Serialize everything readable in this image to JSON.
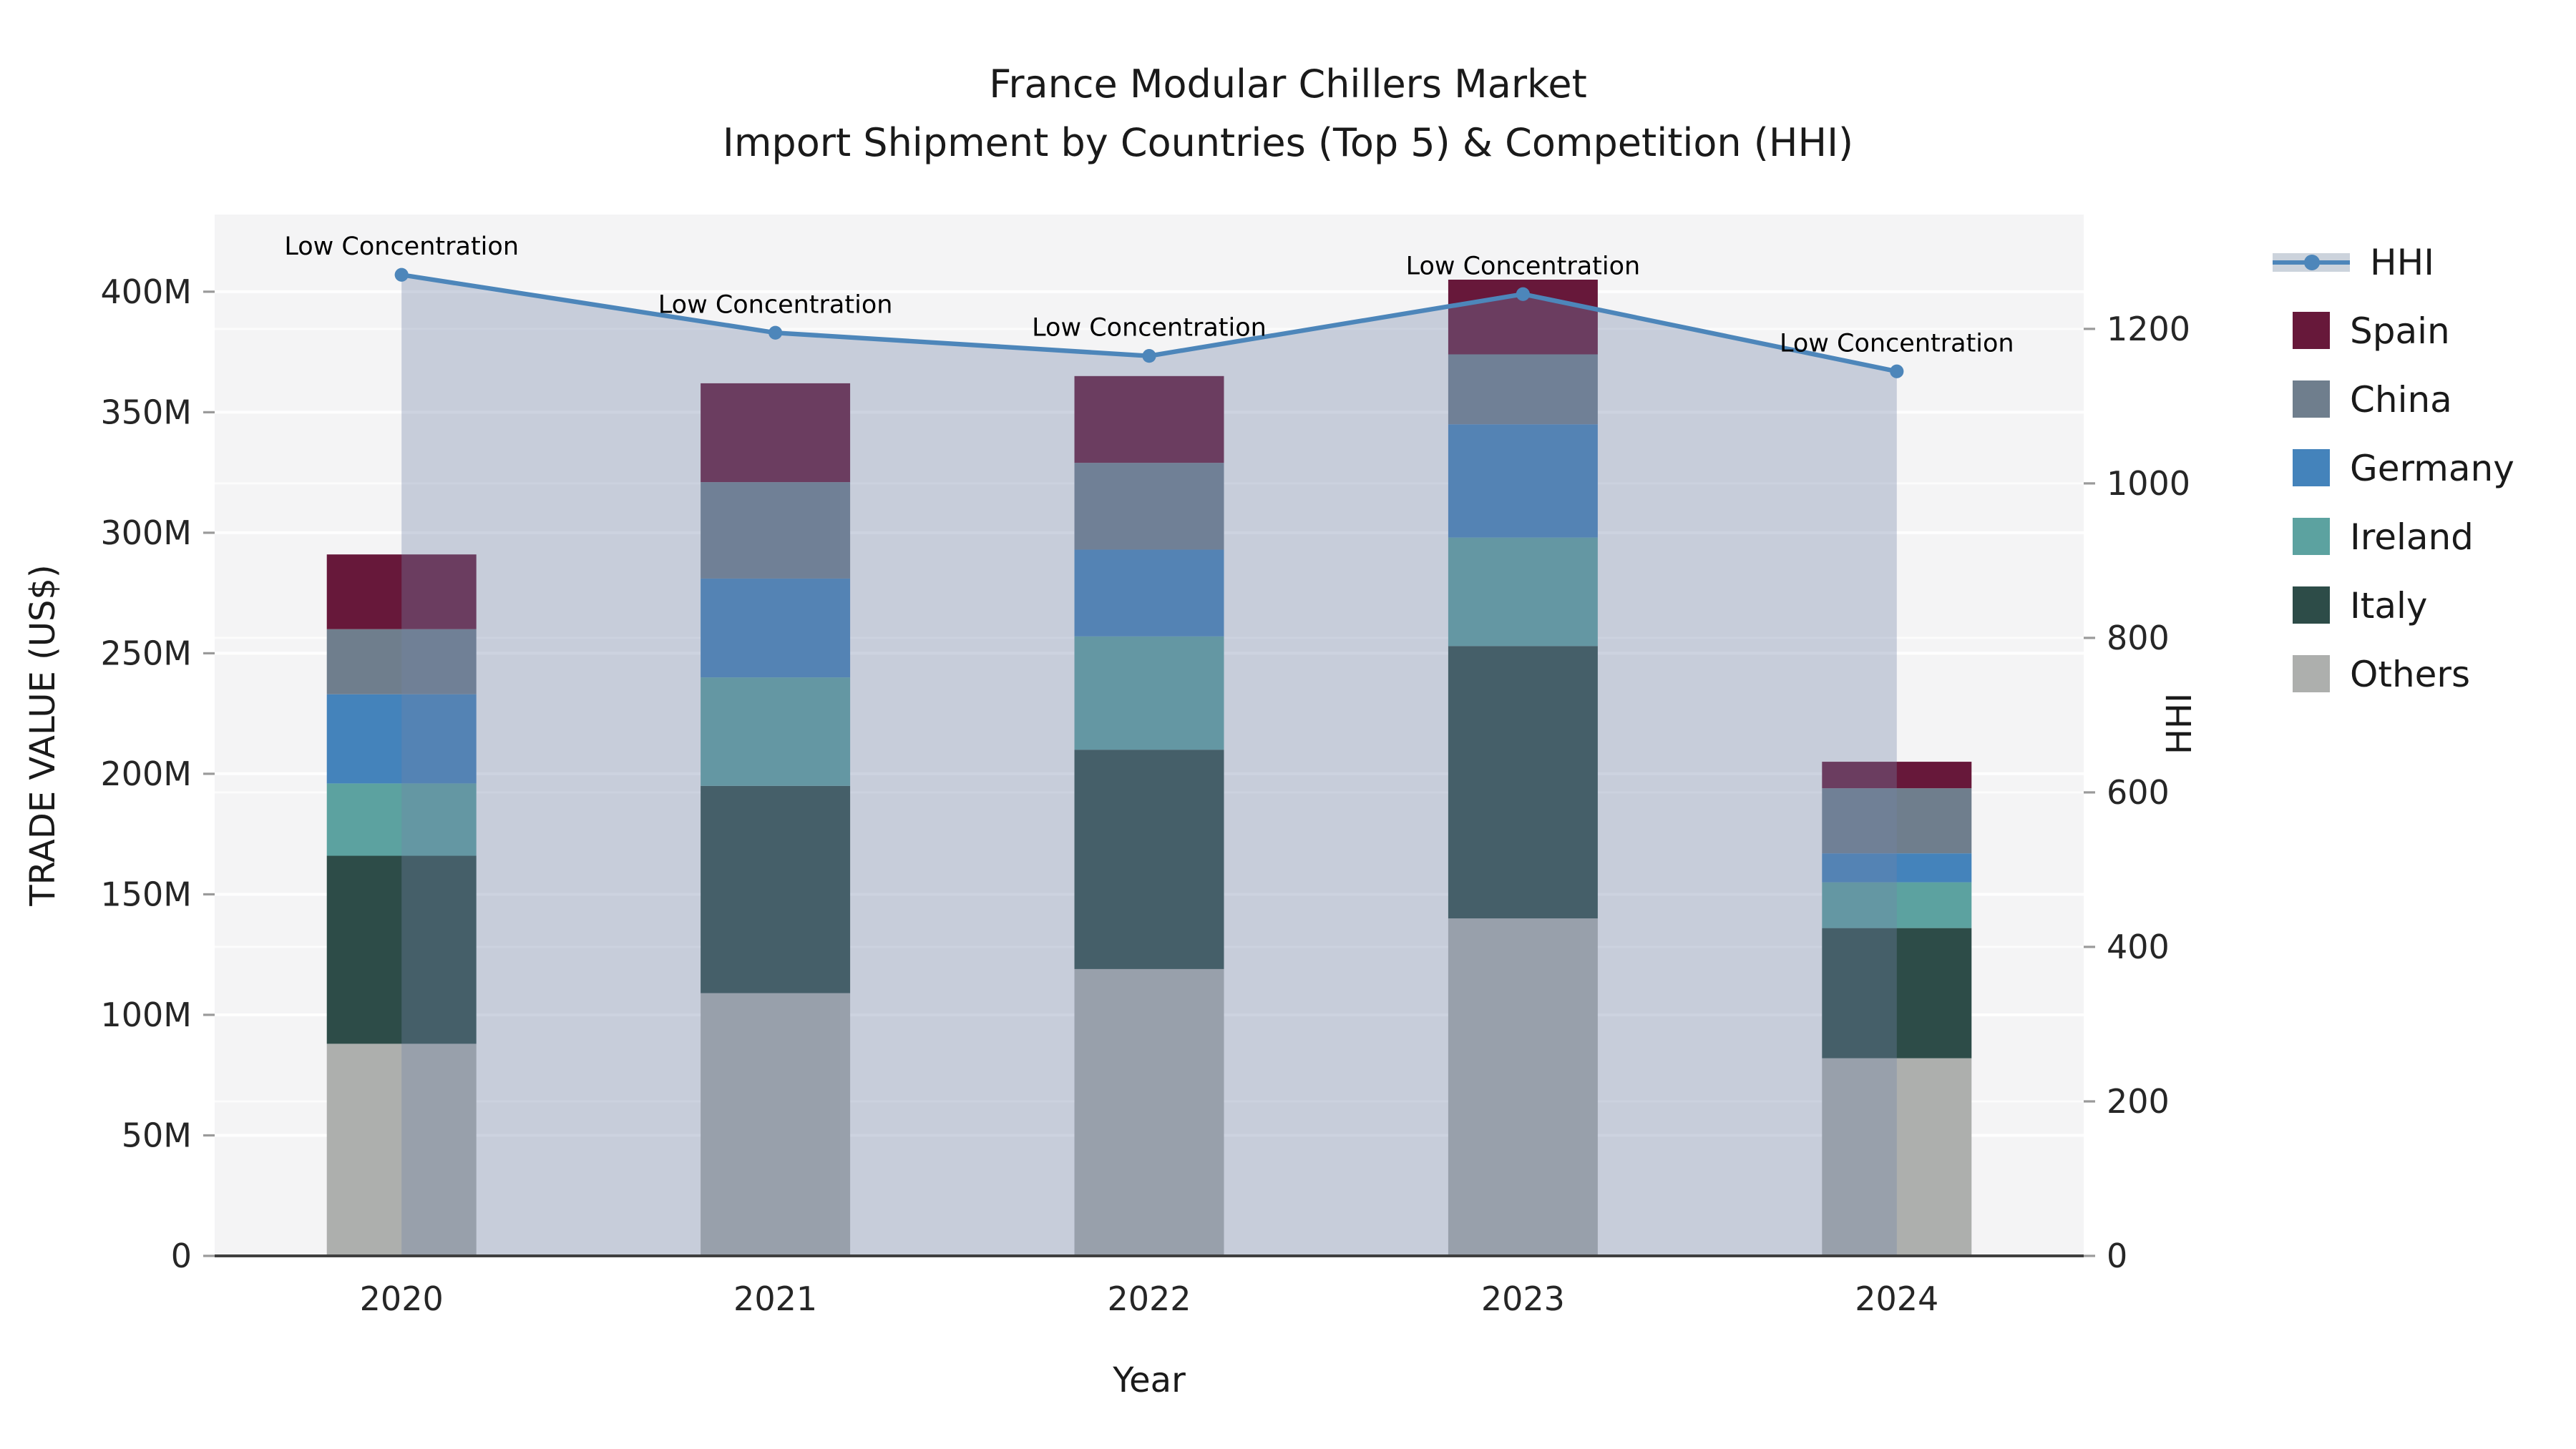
{
  "chart_data": {
    "type": "bar+line",
    "title": "France Modular Chillers Market",
    "subtitle": "Import Shipment by Countries (Top 5) & Competition (HHI)",
    "xlabel": "Year",
    "ylabel_left": "TRADE VALUE (US$)",
    "ylabel_right": "HHI",
    "categories": [
      "2020",
      "2021",
      "2022",
      "2023",
      "2024"
    ],
    "stack_order_bottom_to_top": [
      "Others",
      "Italy",
      "Ireland",
      "Germany",
      "China",
      "Spain"
    ],
    "series": [
      {
        "name": "Spain",
        "color": "#67183A",
        "values": [
          31,
          41,
          36,
          31,
          11
        ]
      },
      {
        "name": "China",
        "color": "#6F7E8D",
        "values": [
          27,
          40,
          36,
          29,
          27
        ]
      },
      {
        "name": "Germany",
        "color": "#4483BB",
        "values": [
          37,
          41,
          36,
          47,
          12
        ]
      },
      {
        "name": "Ireland",
        "color": "#5CA2A0",
        "values": [
          30,
          45,
          47,
          45,
          19
        ]
      },
      {
        "name": "Italy",
        "color": "#2D4C48",
        "values": [
          78,
          86,
          91,
          113,
          54
        ]
      },
      {
        "name": "Others",
        "color": "#ADAFAD",
        "values": [
          88,
          109,
          119,
          140,
          82
        ]
      }
    ],
    "bar_totals": [
      291,
      362,
      365,
      405,
      205
    ],
    "line": {
      "name": "HHI",
      "color": "#4D86BA",
      "area_fill": "rgba(116,133,169,0.35)",
      "values": [
        1270,
        1195,
        1165,
        1245,
        1145
      ],
      "annotations": [
        "Low Concentration",
        "Low Concentration",
        "Low Concentration",
        "Low Concentration",
        "Low Concentration"
      ]
    },
    "axes": {
      "left": {
        "tick_labels": [
          "0",
          "50M",
          "100M",
          "150M",
          "200M",
          "250M",
          "300M",
          "350M",
          "400M"
        ],
        "tick_values": [
          0,
          50,
          100,
          150,
          200,
          250,
          300,
          350,
          400
        ],
        "max": 432
      },
      "right": {
        "tick_labels": [
          "0",
          "200",
          "400",
          "600",
          "800",
          "1000",
          "1200"
        ],
        "tick_values": [
          0,
          200,
          400,
          600,
          800,
          1000,
          1200
        ],
        "max": 1348
      },
      "grid": true,
      "legend_position": "right"
    },
    "legend": [
      "HHI",
      "Spain",
      "China",
      "Germany",
      "Ireland",
      "Italy",
      "Others"
    ]
  },
  "colors": {
    "plot_bg": "#F4F4F5",
    "grid": "#FFFFFF",
    "axis_line": "#3F3F3F",
    "tick": "#9A9A9A",
    "text": "#262626",
    "legend_band": "#CCD3DC"
  }
}
